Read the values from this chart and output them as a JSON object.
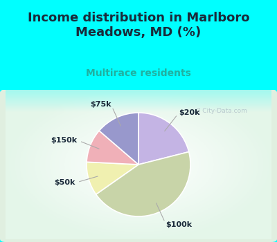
{
  "title": "Income distribution in Marlboro\nMeadows, MD (%)",
  "subtitle": "Multirace residents",
  "slices": [
    {
      "label": "$20k",
      "value": 20,
      "color": "#c4b4e4"
    },
    {
      "label": "$100k",
      "value": 42,
      "color": "#c8d4a8"
    },
    {
      "label": "$50k",
      "value": 10,
      "color": "#f0f0b0"
    },
    {
      "label": "$150k",
      "value": 10,
      "color": "#f0b0b8"
    },
    {
      "label": "$75k",
      "value": 13,
      "color": "#9898cc"
    }
  ],
  "bg_cyan": "#00ffff",
  "bg_chart_color": "#d8eed8",
  "title_color": "#1a2a3a",
  "subtitle_color": "#20b0a0",
  "label_color": "#1a2a3a",
  "watermark": "City-Data.com",
  "watermark_color": "#b0c0c8",
  "startangle": 90,
  "title_fontsize": 13,
  "subtitle_fontsize": 10,
  "label_fontsize": 8
}
